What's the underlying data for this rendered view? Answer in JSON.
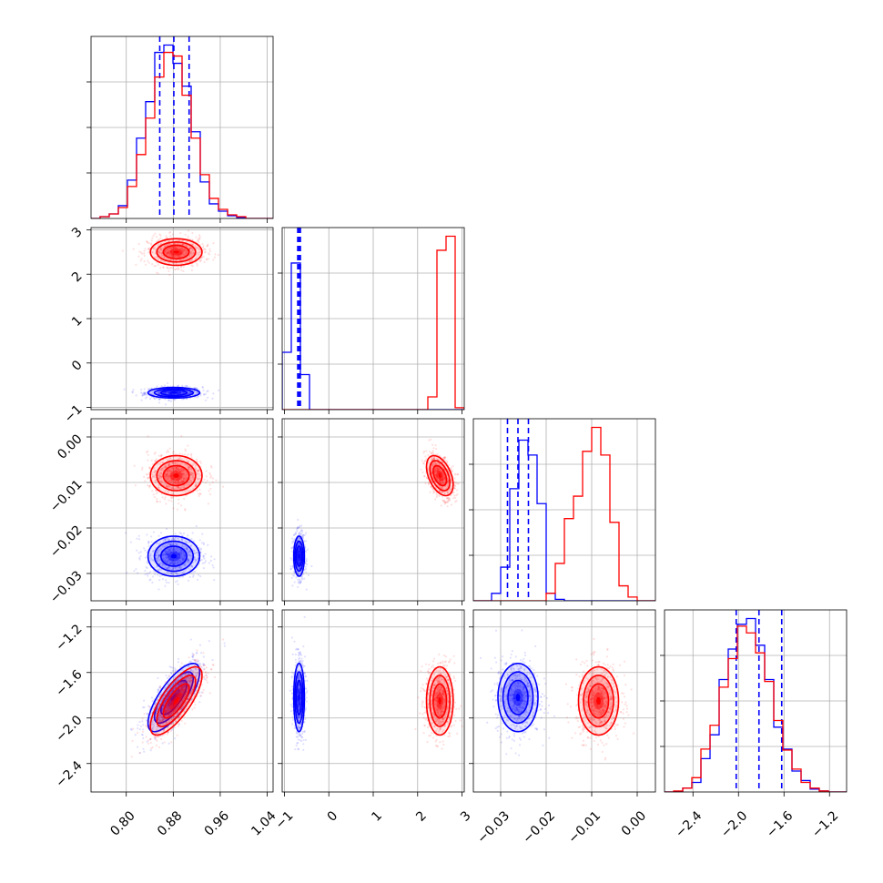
{
  "chart_data": {
    "type": "corner",
    "title": "",
    "grid": true,
    "parameters": [
      {
        "ticks": [
          "0.80",
          "0.88",
          "0.96",
          "1.04"
        ],
        "tick_values": [
          0.8,
          0.88,
          0.96,
          1.04
        ],
        "range": [
          0.74,
          1.05
        ]
      },
      {
        "ticks": [
          "−1",
          "0",
          "1",
          "2",
          "3"
        ],
        "tick_values": [
          -1,
          0,
          1,
          2,
          3
        ],
        "range": [
          -1.05,
          3.05
        ]
      },
      {
        "ticks": [
          "−0.03",
          "−0.02",
          "−0.01",
          "0.00"
        ],
        "tick_values": [
          -0.03,
          -0.02,
          -0.01,
          0.0
        ],
        "range": [
          -0.036,
          0.004
        ]
      },
      {
        "ticks": [
          "−2.4",
          "−2.0",
          "−1.6",
          "−1.2"
        ],
        "tick_values": [
          -2.4,
          -2.0,
          -1.6,
          -1.2
        ],
        "range": [
          -2.65,
          -1.05
        ]
      }
    ],
    "series": [
      {
        "color": "#0000ff",
        "quantile_lines": [
          [
            0.857,
            0.881,
            0.907
          ],
          [
            -0.7,
            -0.67,
            -0.64
          ],
          [
            -0.0285,
            -0.0262,
            -0.0239
          ],
          [
            -2.02,
            -1.82,
            -1.62
          ]
        ],
        "means": [
          0.881,
          -0.67,
          -0.0262,
          -1.82
        ],
        "sigmas": [
          0.022,
          0.06,
          0.0022,
          0.15
        ],
        "corr": {
          "3-0": 0.75
        },
        "histograms": [
          {
            "edges_range": [
              0.74,
              1.05
            ],
            "bins": 20,
            "counts": [
              0,
              2,
              5,
              14,
              42,
              88,
              128,
              182,
              190,
              170,
              145,
              95,
              40,
              16,
              8,
              3,
              1,
              0,
              0,
              0
            ]
          },
          {
            "edges_range": [
              -1.05,
              3.05
            ],
            "bins": 20,
            "counts": [
              90,
              230,
              55,
              0,
              0,
              0,
              0,
              0,
              0,
              0,
              0,
              0,
              0,
              0,
              0,
              0,
              0,
              0,
              0,
              0
            ]
          },
          {
            "edges_range": [
              -0.036,
              0.004
            ],
            "bins": 20,
            "counts": [
              0,
              0,
              10,
              45,
              150,
              215,
              195,
              130,
              10,
              2,
              0,
              0,
              0,
              0,
              0,
              0,
              0,
              0,
              0,
              0
            ]
          },
          {
            "edges_range": [
              -2.65,
              -1.05
            ],
            "bins": 20,
            "counts": [
              0,
              0,
              4,
              10,
              35,
              60,
              118,
              150,
              176,
              182,
              154,
              118,
              68,
              45,
              22,
              12,
              3,
              1,
              0,
              0
            ]
          }
        ]
      },
      {
        "color": "#ff0000",
        "quantile_lines": [],
        "means": [
          0.885,
          2.5,
          -0.0085,
          -1.85
        ],
        "sigmas": [
          0.022,
          0.15,
          0.0022,
          0.15
        ],
        "corr": {
          "3-0": 0.75,
          "2-1": -0.45
        },
        "histograms": [
          {
            "edges_range": [
              0.74,
              1.05
            ],
            "bins": 20,
            "counts": [
              0,
              2,
              5,
              12,
              35,
              70,
              110,
              155,
              182,
              178,
              135,
              88,
              48,
              22,
              10,
              4,
              2,
              0,
              0,
              0
            ]
          },
          {
            "edges_range": [
              -1.05,
              3.05
            ],
            "bins": 20,
            "counts": [
              0,
              0,
              0,
              0,
              0,
              0,
              0,
              0,
              0,
              0,
              0,
              0,
              0,
              0,
              0,
              0,
              20,
              250,
              272,
              3
            ]
          },
          {
            "edges_range": [
              -0.036,
              0.004
            ],
            "bins": 20,
            "counts": [
              0,
              0,
              0,
              0,
              0,
              0,
              0,
              0,
              10,
              50,
              110,
              140,
              200,
              232,
              195,
              105,
              20,
              5,
              0,
              0
            ]
          },
          {
            "edges_range": [
              -2.65,
              -1.05
            ],
            "bins": 20,
            "counts": [
              0,
              1,
              4,
              15,
              45,
              70,
              110,
              140,
              174,
              167,
              146,
              116,
              75,
              44,
              24,
              10,
              4,
              1,
              0,
              0
            ]
          }
        ]
      }
    ]
  }
}
